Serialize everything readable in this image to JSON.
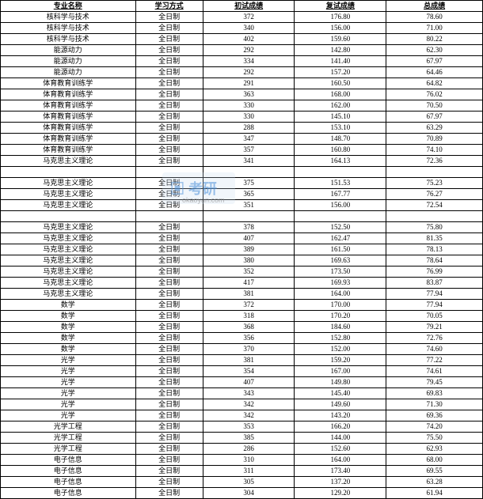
{
  "headers": {
    "major": "专业名称",
    "mode": "学习方式",
    "score1": "初试成绩",
    "score2": "复试成绩",
    "total": "总成绩"
  },
  "watermark": {
    "main": "▣ 考研",
    "sub": "okaoyan.com"
  },
  "rows": [
    {
      "major": "核科学与技术",
      "mode": "全日制",
      "s1": "372",
      "s2": "176.80",
      "t": "78.60"
    },
    {
      "major": "核科学与技术",
      "mode": "全日制",
      "s1": "340",
      "s2": "156.00",
      "t": "71.00"
    },
    {
      "major": "核科学与技术",
      "mode": "全日制",
      "s1": "402",
      "s2": "159.60",
      "t": "80.22"
    },
    {
      "major": "能源动力",
      "mode": "全日制",
      "s1": "292",
      "s2": "142.80",
      "t": "62.30"
    },
    {
      "major": "能源动力",
      "mode": "全日制",
      "s1": "334",
      "s2": "141.40",
      "t": "67.97"
    },
    {
      "major": "能源动力",
      "mode": "全日制",
      "s1": "292",
      "s2": "157.20",
      "t": "64.46"
    },
    {
      "major": "体育教育训练学",
      "mode": "全日制",
      "s1": "291",
      "s2": "160.50",
      "t": "64.82"
    },
    {
      "major": "体育教育训练学",
      "mode": "全日制",
      "s1": "363",
      "s2": "168.00",
      "t": "76.02"
    },
    {
      "major": "体育教育训练学",
      "mode": "全日制",
      "s1": "330",
      "s2": "162.00",
      "t": "70.50"
    },
    {
      "major": "体育教育训练学",
      "mode": "全日制",
      "s1": "330",
      "s2": "145.10",
      "t": "67.97"
    },
    {
      "major": "体育教育训练学",
      "mode": "全日制",
      "s1": "288",
      "s2": "153.10",
      "t": "63.29"
    },
    {
      "major": "体育教育训练学",
      "mode": "全日制",
      "s1": "347",
      "s2": "148.70",
      "t": "70.89"
    },
    {
      "major": "体育教育训练学",
      "mode": "全日制",
      "s1": "357",
      "s2": "160.80",
      "t": "74.10"
    },
    {
      "major": "马克思主义理论",
      "mode": "全日制",
      "s1": "341",
      "s2": "164.13",
      "t": "72.36"
    },
    {
      "blank": true
    },
    {
      "major": "马克思主义理论",
      "mode": "全日制",
      "s1": "375",
      "s2": "151.53",
      "t": "75.23"
    },
    {
      "major": "马克思主义理论",
      "mode": "全日制",
      "s1": "365",
      "s2": "167.77",
      "t": "76.27"
    },
    {
      "major": "马克思主义理论",
      "mode": "全日制",
      "s1": "351",
      "s2": "156.00",
      "t": "72.54"
    },
    {
      "blank": true
    },
    {
      "major": "马克思主义理论",
      "mode": "全日制",
      "s1": "378",
      "s2": "152.50",
      "t": "75.80"
    },
    {
      "major": "马克思主义理论",
      "mode": "全日制",
      "s1": "407",
      "s2": "162.47",
      "t": "81.35"
    },
    {
      "major": "马克思主义理论",
      "mode": "全日制",
      "s1": "389",
      "s2": "161.50",
      "t": "78.13"
    },
    {
      "major": "马克思主义理论",
      "mode": "全日制",
      "s1": "380",
      "s2": "169.63",
      "t": "78.64"
    },
    {
      "major": "马克思主义理论",
      "mode": "全日制",
      "s1": "352",
      "s2": "173.50",
      "t": "76.99"
    },
    {
      "major": "马克思主义理论",
      "mode": "全日制",
      "s1": "417",
      "s2": "169.93",
      "t": "83.87"
    },
    {
      "major": "马克思主义理论",
      "mode": "全日制",
      "s1": "381",
      "s2": "164.00",
      "t": "77.94"
    },
    {
      "major": "数学",
      "mode": "全日制",
      "s1": "372",
      "s2": "170.00",
      "t": "77.94"
    },
    {
      "major": "数学",
      "mode": "全日制",
      "s1": "318",
      "s2": "170.20",
      "t": "70.05"
    },
    {
      "major": "数学",
      "mode": "全日制",
      "s1": "368",
      "s2": "184.60",
      "t": "79.21"
    },
    {
      "major": "数学",
      "mode": "全日制",
      "s1": "356",
      "s2": "152.80",
      "t": "72.76"
    },
    {
      "major": "数学",
      "mode": "全日制",
      "s1": "370",
      "s2": "152.00",
      "t": "74.60"
    },
    {
      "major": "光学",
      "mode": "全日制",
      "s1": "381",
      "s2": "159.20",
      "t": "77.22"
    },
    {
      "major": "光学",
      "mode": "全日制",
      "s1": "354",
      "s2": "167.00",
      "t": "74.61"
    },
    {
      "major": "光学",
      "mode": "全日制",
      "s1": "407",
      "s2": "149.80",
      "t": "79.45"
    },
    {
      "major": "光学",
      "mode": "全日制",
      "s1": "343",
      "s2": "145.40",
      "t": "69.83"
    },
    {
      "major": "光学",
      "mode": "全日制",
      "s1": "342",
      "s2": "149.60",
      "t": "71.30"
    },
    {
      "major": "光学",
      "mode": "全日制",
      "s1": "342",
      "s2": "143.20",
      "t": "69.36"
    },
    {
      "major": "光学工程",
      "mode": "全日制",
      "s1": "353",
      "s2": "166.20",
      "t": "74.20"
    },
    {
      "major": "光学工程",
      "mode": "全日制",
      "s1": "385",
      "s2": "144.00",
      "t": "75.50"
    },
    {
      "major": "光学工程",
      "mode": "全日制",
      "s1": "286",
      "s2": "152.60",
      "t": "62.93"
    },
    {
      "major": "电子信息",
      "mode": "全日制",
      "s1": "310",
      "s2": "164.00",
      "t": "68.00"
    },
    {
      "major": "电子信息",
      "mode": "全日制",
      "s1": "311",
      "s2": "173.40",
      "t": "69.55"
    },
    {
      "major": "电子信息",
      "mode": "全日制",
      "s1": "305",
      "s2": "137.20",
      "t": "63.28"
    },
    {
      "major": "电子信息",
      "mode": "全日制",
      "s1": "304",
      "s2": "129.20",
      "t": "61.94"
    }
  ]
}
